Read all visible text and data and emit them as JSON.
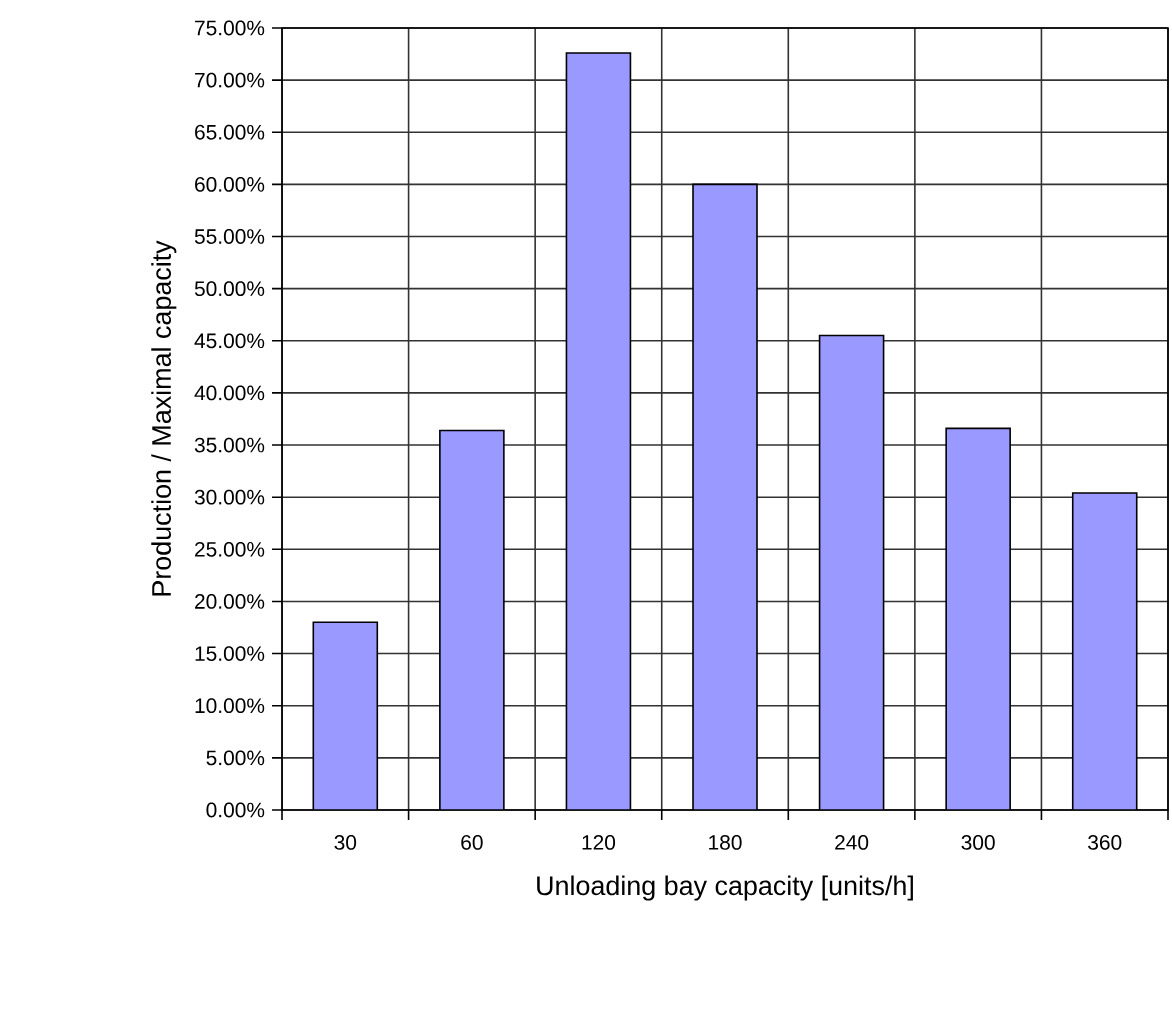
{
  "chart_data": {
    "type": "bar",
    "xlabel": "Unloading bay capacity [units/h]",
    "ylabel": "Production / Maximal capacity",
    "categories": [
      "30",
      "60",
      "120",
      "180",
      "240",
      "300",
      "360"
    ],
    "values": [
      18,
      36.4,
      72.6,
      60,
      45.5,
      36.6,
      30.4
    ],
    "color": "#9999ff",
    "ylim": [
      0,
      75
    ],
    "yticks": [
      {
        "value": 0,
        "label": "0.00%"
      },
      {
        "value": 5,
        "label": "5.00%"
      },
      {
        "value": 10,
        "label": "10.00%"
      },
      {
        "value": 15,
        "label": "15.00%"
      },
      {
        "value": 20,
        "label": "20.00%"
      },
      {
        "value": 25,
        "label": "25.00%"
      },
      {
        "value": 30,
        "label": "30.00%"
      },
      {
        "value": 35,
        "label": "35.00%"
      },
      {
        "value": 40,
        "label": "40.00%"
      },
      {
        "value": 45,
        "label": "45.00%"
      },
      {
        "value": 50,
        "label": "50.00%"
      },
      {
        "value": 55,
        "label": "55.00%"
      },
      {
        "value": 60,
        "label": "60.00%"
      },
      {
        "value": 65,
        "label": "65.00%"
      },
      {
        "value": 70,
        "label": "70.00%"
      },
      {
        "value": 75,
        "label": "75.00%"
      }
    ],
    "grid": true
  }
}
